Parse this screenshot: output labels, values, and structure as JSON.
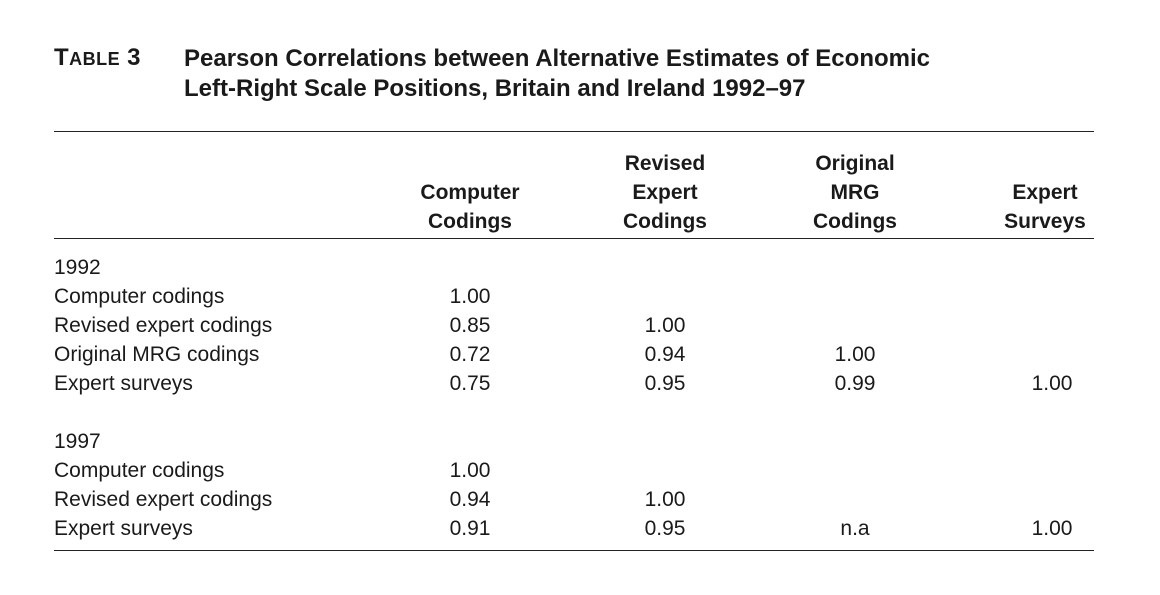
{
  "caption": {
    "label_first": "T",
    "label_rest": "ABLE",
    "label_num": "3",
    "title_line1": "Pearson Correlations between Alternative Estimates of Economic",
    "title_line2": "Left-Right Scale Positions, Britain and Ireland 1992–97"
  },
  "columns": [
    {
      "lines": [
        "",
        "Computer",
        "Codings"
      ]
    },
    {
      "lines": [
        "Revised",
        "Expert",
        "Codings"
      ]
    },
    {
      "lines": [
        "Original",
        "MRG",
        "Codings"
      ]
    },
    {
      "lines": [
        "",
        "Expert",
        "Surveys"
      ]
    }
  ],
  "groups": [
    {
      "year": "1992",
      "rows": [
        {
          "label": "Computer codings",
          "values": [
            "1.00",
            "",
            "",
            ""
          ]
        },
        {
          "label": "Revised expert codings",
          "values": [
            "0.85",
            "1.00",
            "",
            ""
          ]
        },
        {
          "label": "Original MRG codings",
          "values": [
            "0.72",
            "0.94",
            "1.00",
            ""
          ]
        },
        {
          "label": "Expert surveys",
          "values": [
            "0.75",
            "0.95",
            "0.99",
            "1.00"
          ]
        }
      ]
    },
    {
      "year": "1997",
      "rows": [
        {
          "label": "Computer codings",
          "values": [
            "1.00",
            "",
            "",
            ""
          ]
        },
        {
          "label": "Revised expert codings",
          "values": [
            "0.94",
            "1.00",
            "",
            ""
          ]
        },
        {
          "label": "Expert surveys",
          "values": [
            "0.91",
            "0.95",
            "n.a",
            "1.00"
          ]
        }
      ]
    }
  ]
}
